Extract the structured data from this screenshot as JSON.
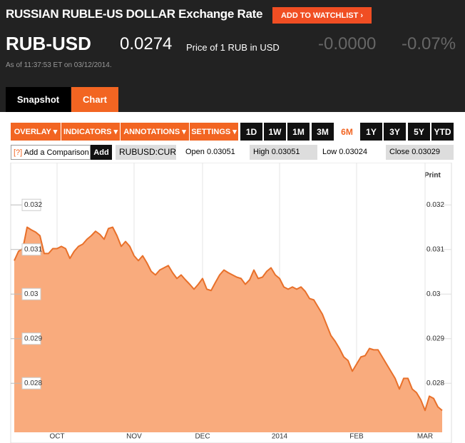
{
  "header": {
    "title": "RUSSIAN RUBLE-US DOLLAR Exchange Rate",
    "watchlist_button": "ADD TO WATCHLIST ›",
    "ticker": "RUB-USD",
    "price": 0.0274,
    "price_note": "Price of 1 RUB in USD",
    "change": "-0.0000",
    "change_percent": "-0.07%",
    "timestamp": "As of 11:37:53 ET on 03/12/2014."
  },
  "tabs": [
    "Snapshot",
    "Chart"
  ],
  "toolbar": {
    "menus": [
      "OVERLAY ▾",
      "INDICATORS ▾",
      "ANNOTATIONS ▾",
      "SETTINGS ▾"
    ],
    "ranges": [
      "1D",
      "1W",
      "1M",
      "3M",
      "6M",
      "1Y",
      "3Y",
      "5Y",
      "YTD"
    ],
    "active_range": "6M"
  },
  "quote_bar": {
    "help": "[?]",
    "comparison_placeholder": "Add a Comparison",
    "add_button": "Add",
    "symbol": "RUBUSD:CUR",
    "fields": [
      {
        "label": "Open",
        "value": 0.03051
      },
      {
        "label": "High",
        "value": 0.03051
      },
      {
        "label": "Low",
        "value": 0.03024
      },
      {
        "label": "Close",
        "value": 0.03029
      }
    ]
  },
  "chart_data": {
    "type": "area",
    "print_label": "Print",
    "categories": [
      null,
      null,
      null,
      null,
      null,
      null,
      null,
      null,
      null,
      null,
      "OCT",
      null,
      null,
      null,
      null,
      null,
      null,
      null,
      null,
      null,
      null,
      null,
      null,
      null,
      null,
      null,
      null,
      null,
      "NOV",
      null,
      null,
      null,
      null,
      null,
      null,
      null,
      null,
      null,
      null,
      null,
      null,
      null,
      null,
      null,
      "DEC",
      null,
      null,
      null,
      null,
      null,
      null,
      null,
      null,
      null,
      null,
      null,
      null,
      null,
      null,
      null,
      null,
      null,
      "2014",
      null,
      null,
      null,
      null,
      null,
      null,
      null,
      null,
      null,
      null,
      null,
      null,
      null,
      null,
      null,
      null,
      null,
      "FEB",
      null,
      null,
      null,
      null,
      null,
      null,
      null,
      null,
      null,
      null,
      null,
      null,
      null,
      null,
      null,
      "MAR",
      null,
      null,
      null,
      null
    ],
    "values": [
      0.03075,
      0.03096,
      0.03102,
      0.0315,
      0.03144,
      0.03139,
      0.03131,
      0.03091,
      0.03091,
      0.03102,
      0.03102,
      0.03107,
      0.03102,
      0.0308,
      0.03096,
      0.03107,
      0.03112,
      0.03123,
      0.03131,
      0.03141,
      0.03134,
      0.03123,
      0.03147,
      0.0315,
      0.03131,
      0.03107,
      0.03118,
      0.03107,
      0.03086,
      0.03075,
      0.03086,
      0.0307,
      0.03051,
      0.03043,
      0.03054,
      0.03059,
      0.03064,
      0.03048,
      0.03035,
      0.03043,
      0.03032,
      0.03022,
      0.03011,
      0.03022,
      0.03035,
      0.03011,
      0.03008,
      0.03026,
      0.03043,
      0.03054,
      0.03048,
      0.03043,
      0.03038,
      0.03035,
      0.03022,
      0.03032,
      0.03054,
      0.03035,
      0.03038,
      0.03051,
      0.03059,
      0.03043,
      0.03035,
      0.03016,
      0.03011,
      0.03016,
      0.03011,
      0.03016,
      0.03006,
      0.0299,
      0.02987,
      0.02971,
      0.02955,
      0.02931,
      0.02907,
      0.02894,
      0.02878,
      0.02859,
      0.02851,
      0.02827,
      0.02843,
      0.02859,
      0.02862,
      0.02878,
      0.02875,
      0.02875,
      0.02859,
      0.02843,
      0.02827,
      0.02811,
      0.02787,
      0.02811,
      0.02811,
      0.02787,
      0.02779,
      0.02763,
      0.02739,
      0.02771,
      0.02766,
      0.02747,
      0.02739
    ],
    "line_color": "#e8702a",
    "fill_color": "#f9ab7d",
    "ylim": [
      0.0269,
      0.0329
    ],
    "yticks": [
      0.028,
      0.029,
      0.03,
      0.031,
      0.032
    ]
  }
}
